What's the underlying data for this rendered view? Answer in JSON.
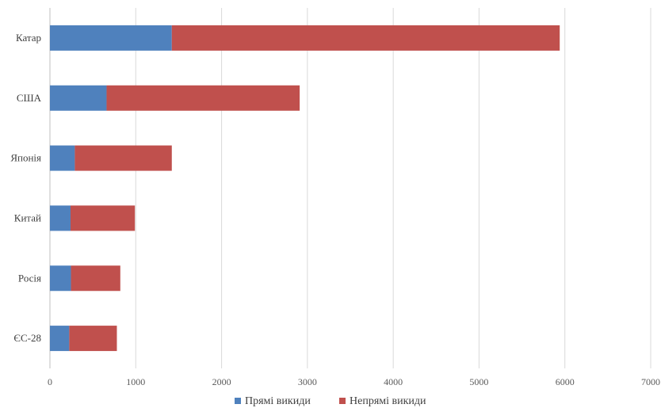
{
  "chart_data": {
    "type": "bar",
    "orientation": "horizontal",
    "stacked": true,
    "title": "",
    "xlabel": "",
    "ylabel": "",
    "categories": [
      "Катар",
      "США",
      "Японія",
      "Китай",
      "Росія",
      "ЄС-28"
    ],
    "series": [
      {
        "name": "Прямі викиди",
        "color": "#4F81BD",
        "values": [
          1420,
          660,
          290,
          240,
          245,
          225
        ]
      },
      {
        "name": "Непрямі викиди",
        "color": "#C0504D",
        "values": [
          4520,
          2250,
          1130,
          750,
          575,
          555
        ]
      }
    ],
    "xlim": [
      0,
      7000
    ],
    "xticks": [
      0,
      1000,
      2000,
      3000,
      4000,
      5000,
      6000,
      7000
    ],
    "grid": "vertical",
    "legend_position": "bottom"
  }
}
